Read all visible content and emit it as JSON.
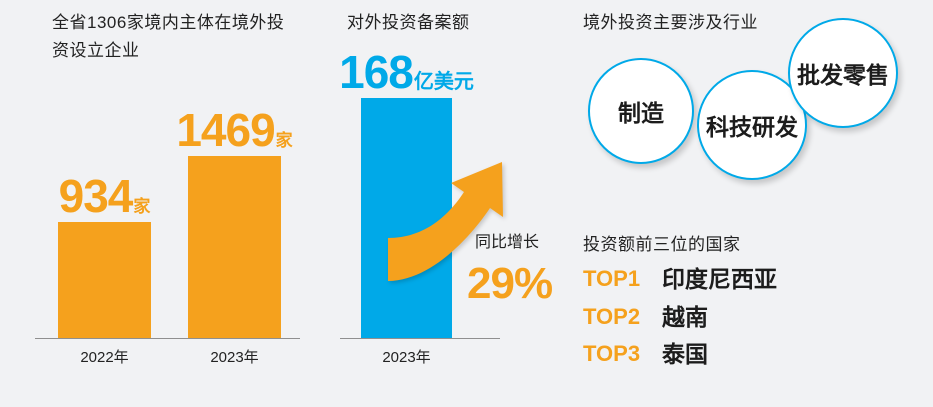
{
  "background_color": "#f1f2f4",
  "colors": {
    "orange": "#f5a11d",
    "blue": "#00a9e8",
    "text": "#222222",
    "axis": "#8f8f8f"
  },
  "chart_data": [
    {
      "type": "bar",
      "title_lines": [
        "全省1306家境内主体在境外投",
        "资设立企业"
      ],
      "categories": [
        "2022年",
        "2023年"
      ],
      "values": [
        934,
        1469
      ],
      "unit": "家",
      "color": "#f5a11d",
      "grid": false
    },
    {
      "type": "bar",
      "title": "对外投资备案额",
      "categories": [
        "2023年"
      ],
      "values": [
        168
      ],
      "unit": "亿美元",
      "color": "#00a9e8",
      "grid": false,
      "annotation": {
        "label": "同比增长",
        "value": "29%"
      }
    }
  ],
  "industries": {
    "title": "境外投资主要涉及行业",
    "items": [
      "制造",
      "科技研发",
      "批发零售"
    ]
  },
  "top_countries": {
    "title": "投资额前三位的国家",
    "items": [
      {
        "rank": "TOP1",
        "name": "印度尼西亚"
      },
      {
        "rank": "TOP2",
        "name": "越南"
      },
      {
        "rank": "TOP3",
        "name": "泰国"
      }
    ]
  }
}
